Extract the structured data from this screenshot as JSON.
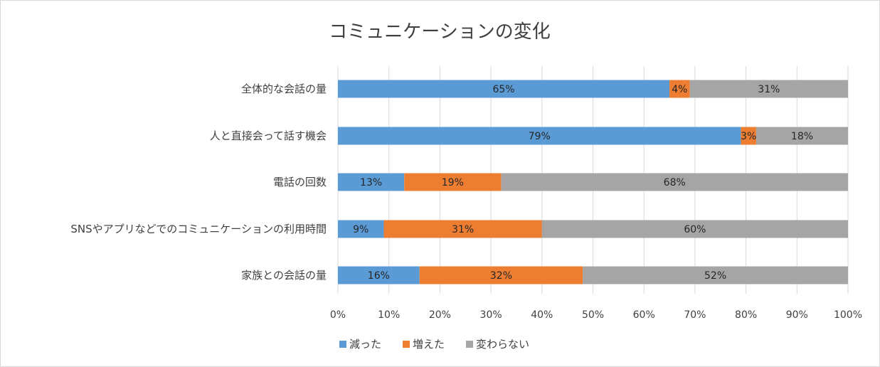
{
  "chart_data": {
    "type": "bar",
    "orientation": "horizontal",
    "stacked": "percent",
    "title": "コミュニケーションの変化",
    "categories": [
      "全体的な会話の量",
      "人と直接会って話す機会",
      "電話の回数",
      "SNSやアプリなどでのコミュニケーションの利用時間",
      "家族との会話の量"
    ],
    "series": [
      {
        "name": "減った",
        "color": "#5b9bd5",
        "values": [
          65,
          79,
          13,
          9,
          16
        ]
      },
      {
        "name": "増えた",
        "color": "#ed7d31",
        "values": [
          4,
          3,
          19,
          31,
          32
        ]
      },
      {
        "name": "変わらない",
        "color": "#a5a5a5",
        "values": [
          31,
          18,
          68,
          60,
          52
        ]
      }
    ],
    "xlim": [
      0,
      100
    ],
    "xticks": [
      "0%",
      "10%",
      "20%",
      "30%",
      "40%",
      "50%",
      "60%",
      "70%",
      "80%",
      "90%",
      "100%"
    ],
    "grid": "vertical",
    "legend": "bottom"
  }
}
